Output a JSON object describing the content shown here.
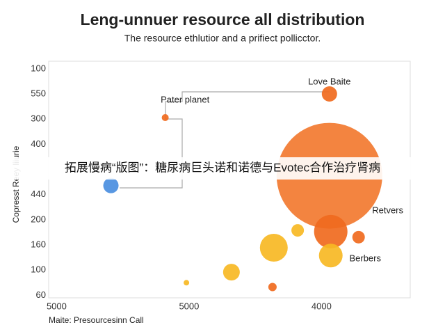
{
  "chart_data": {
    "type": "bubble",
    "title": "Leng-unnuer resource all distribution",
    "subtitle": "The resource ethlutior and a prifiect pollicctor.",
    "x_label": "Maite: Presourcesinn Call",
    "y_label": "Copresst Reey liiurie",
    "banner": "拓展慢病“版图”：糖尿病巨头诺和诺德与Evotec合作治疗肾病",
    "xcategories": [
      "5000",
      "5000",
      "4000"
    ],
    "ycategories": [
      "100",
      "550",
      "300",
      "400",
      null,
      "440",
      "200",
      "160",
      "100",
      "60"
    ],
    "xlim": [
      -0.06,
      2.67
    ],
    "ylim": [
      -0.3,
      9.1
    ],
    "series": [
      {
        "x": [
          2.06,
          0.82,
          0.41,
          2.06,
          2.07,
          2.28,
          1.82,
          1.64,
          2.07,
          1.32,
          0.98,
          1.63
        ],
        "values": [
          1.0,
          1.94,
          4.64,
          4.25,
          6.47,
          6.69,
          6.42,
          7.11,
          7.42,
          8.08,
          8.5,
          8.67
        ],
        "sizes": [
          11,
          5,
          11,
          76,
          24,
          9,
          9,
          20,
          17,
          12,
          4,
          6
        ],
        "colors": [
          "#f06a1e",
          "#f06a1e",
          "#4a8ee0",
          "#f27a30",
          "#f06a1e",
          "#f06a1e",
          "#f7b824",
          "#f7b824",
          "#f7b824",
          "#f7b824",
          "#f7b824",
          "#f06a1e"
        ]
      }
    ],
    "annotations": [
      {
        "text": "Love Baite",
        "x": 2.06,
        "y": 0.53
      },
      {
        "text": "Pater planet",
        "x": 0.97,
        "y": 1.25
      },
      {
        "text": "Retvers",
        "x": 2.5,
        "y": 5.64
      },
      {
        "text": "Berbers",
        "x": 2.33,
        "y": 7.56
      }
    ]
  }
}
